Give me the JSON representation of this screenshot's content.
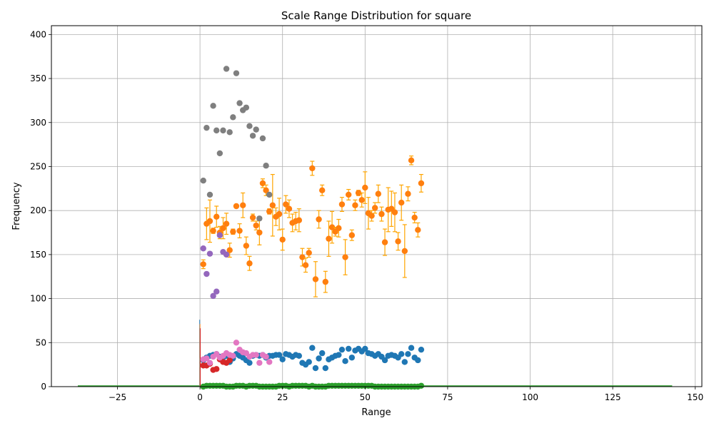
{
  "chart_data": {
    "type": "scatter",
    "title": "Scale Range Distribution for square",
    "xlabel": "Range",
    "ylabel": "Frequency",
    "xlim": [
      -45,
      152
    ],
    "ylim": [
      0,
      410
    ],
    "xticks": [
      -25,
      0,
      25,
      50,
      75,
      100,
      125,
      150
    ],
    "yticks": [
      0,
      50,
      100,
      150,
      200,
      250,
      300,
      350,
      400
    ],
    "grid": true,
    "error_bar_color": "#ffa500",
    "series": [
      {
        "color": "#1f77b4",
        "points": [
          [
            1,
            30
          ],
          [
            2,
            33
          ],
          [
            3,
            35
          ],
          [
            4,
            36
          ],
          [
            5,
            37
          ],
          [
            6,
            34
          ],
          [
            7,
            33
          ],
          [
            8,
            35
          ],
          [
            9,
            28
          ],
          [
            10,
            32
          ],
          [
            11,
            37
          ],
          [
            12,
            35
          ],
          [
            13,
            33
          ],
          [
            14,
            30
          ],
          [
            15,
            27
          ],
          [
            16,
            35
          ],
          [
            17,
            36
          ],
          [
            18,
            35
          ],
          [
            19,
            36
          ],
          [
            20,
            33
          ],
          [
            21,
            35
          ],
          [
            22,
            35
          ],
          [
            23,
            36
          ],
          [
            24,
            36
          ],
          [
            25,
            31
          ],
          [
            26,
            37
          ],
          [
            27,
            36
          ],
          [
            28,
            34
          ],
          [
            29,
            36
          ],
          [
            30,
            35
          ],
          [
            31,
            27
          ],
          [
            32,
            25
          ],
          [
            33,
            28
          ],
          [
            34,
            44
          ],
          [
            35,
            21
          ],
          [
            36,
            32
          ],
          [
            37,
            38
          ],
          [
            38,
            21
          ],
          [
            39,
            31
          ],
          [
            40,
            33
          ],
          [
            41,
            35
          ],
          [
            42,
            36
          ],
          [
            43,
            42
          ],
          [
            44,
            29
          ],
          [
            45,
            43
          ],
          [
            46,
            33
          ],
          [
            47,
            41
          ],
          [
            48,
            43
          ],
          [
            49,
            40
          ],
          [
            50,
            43
          ],
          [
            51,
            38
          ],
          [
            52,
            37
          ],
          [
            53,
            35
          ],
          [
            54,
            37
          ],
          [
            55,
            34
          ],
          [
            56,
            30
          ],
          [
            57,
            35
          ],
          [
            58,
            36
          ],
          [
            59,
            35
          ],
          [
            60,
            33
          ],
          [
            61,
            37
          ],
          [
            62,
            28
          ],
          [
            63,
            37
          ],
          [
            64,
            44
          ],
          [
            65,
            33
          ],
          [
            66,
            30
          ],
          [
            67,
            42
          ]
        ]
      },
      {
        "color": "#ff7f0e",
        "points": [
          [
            1,
            139,
            5
          ],
          [
            2,
            185,
            18
          ],
          [
            3,
            188,
            24
          ],
          [
            4,
            177,
            3
          ],
          [
            5,
            193,
            12
          ],
          [
            6,
            175,
            7
          ],
          [
            7,
            180,
            12
          ],
          [
            8,
            185,
            12
          ],
          [
            9,
            155,
            8
          ],
          [
            10,
            176,
            3
          ],
          [
            11,
            205,
            2
          ],
          [
            12,
            177,
            8
          ],
          [
            13,
            206,
            14
          ],
          [
            14,
            160,
            10
          ],
          [
            15,
            140,
            8
          ],
          [
            16,
            192,
            4
          ],
          [
            17,
            183,
            5
          ],
          [
            18,
            175,
            14
          ],
          [
            19,
            231,
            5
          ],
          [
            20,
            223,
            6
          ],
          [
            21,
            199,
            3
          ],
          [
            22,
            206,
            35
          ],
          [
            23,
            193,
            10
          ],
          [
            24,
            196,
            18
          ],
          [
            25,
            167,
            12
          ],
          [
            26,
            207,
            10
          ],
          [
            27,
            202,
            10
          ],
          [
            28,
            186,
            10
          ],
          [
            29,
            188,
            10
          ],
          [
            30,
            189,
            13
          ],
          [
            31,
            147,
            10
          ],
          [
            32,
            138,
            8
          ],
          [
            33,
            152,
            5
          ],
          [
            34,
            248,
            8
          ],
          [
            35,
            122,
            20
          ],
          [
            36,
            190,
            10
          ],
          [
            37,
            223,
            6
          ],
          [
            38,
            119,
            12
          ],
          [
            39,
            168,
            20
          ],
          [
            40,
            181,
            18
          ],
          [
            41,
            176,
            5
          ],
          [
            42,
            180,
            10
          ],
          [
            43,
            207,
            8
          ],
          [
            44,
            147,
            20
          ],
          [
            45,
            218,
            6
          ],
          [
            46,
            172,
            6
          ],
          [
            47,
            206,
            6
          ],
          [
            48,
            220,
            3
          ],
          [
            49,
            212,
            8
          ],
          [
            50,
            226,
            18
          ],
          [
            51,
            197,
            18
          ],
          [
            52,
            194,
            6
          ],
          [
            53,
            203,
            6
          ],
          [
            54,
            219,
            10
          ],
          [
            55,
            196,
            8
          ],
          [
            56,
            164,
            15
          ],
          [
            57,
            201,
            25
          ],
          [
            58,
            202,
            20
          ],
          [
            59,
            198,
            22
          ],
          [
            60,
            165,
            10
          ],
          [
            61,
            209,
            20
          ],
          [
            62,
            154,
            30
          ],
          [
            63,
            219,
            8
          ],
          [
            64,
            257,
            5
          ],
          [
            65,
            192,
            6
          ],
          [
            66,
            178,
            8
          ],
          [
            67,
            231,
            10
          ]
        ]
      },
      {
        "color": "#2ca02c",
        "points": [
          [
            1,
            0
          ],
          [
            2,
            1
          ],
          [
            3,
            1
          ],
          [
            4,
            1
          ],
          [
            5,
            1
          ],
          [
            6,
            1
          ],
          [
            7,
            1
          ],
          [
            8,
            0
          ],
          [
            9,
            0
          ],
          [
            10,
            0
          ],
          [
            11,
            1
          ],
          [
            12,
            1
          ],
          [
            13,
            1
          ],
          [
            14,
            0
          ],
          [
            15,
            1
          ],
          [
            16,
            1
          ],
          [
            17,
            1
          ],
          [
            18,
            0
          ],
          [
            19,
            0
          ],
          [
            20,
            0
          ],
          [
            21,
            0
          ],
          [
            22,
            0
          ],
          [
            23,
            0
          ],
          [
            24,
            1
          ],
          [
            25,
            1
          ],
          [
            26,
            1
          ],
          [
            27,
            0
          ],
          [
            28,
            1
          ],
          [
            29,
            1
          ],
          [
            30,
            1
          ],
          [
            31,
            1
          ],
          [
            32,
            1
          ],
          [
            33,
            0
          ],
          [
            34,
            1
          ],
          [
            35,
            0
          ],
          [
            36,
            0
          ],
          [
            37,
            0
          ],
          [
            38,
            0
          ],
          [
            39,
            1
          ],
          [
            40,
            1
          ],
          [
            41,
            1
          ],
          [
            42,
            1
          ],
          [
            43,
            1
          ],
          [
            44,
            1
          ],
          [
            45,
            1
          ],
          [
            46,
            1
          ],
          [
            47,
            1
          ],
          [
            48,
            1
          ],
          [
            49,
            1
          ],
          [
            50,
            1
          ],
          [
            51,
            1
          ],
          [
            52,
            1
          ],
          [
            53,
            0
          ],
          [
            54,
            0
          ],
          [
            55,
            0
          ],
          [
            56,
            0
          ],
          [
            57,
            0
          ],
          [
            58,
            0
          ],
          [
            59,
            0
          ],
          [
            60,
            0
          ],
          [
            61,
            0
          ],
          [
            62,
            0
          ],
          [
            63,
            0
          ],
          [
            64,
            0
          ],
          [
            65,
            0
          ],
          [
            66,
            0
          ],
          [
            67,
            1
          ]
        ]
      },
      {
        "color": "#d62728",
        "points": [
          [
            1,
            24
          ],
          [
            2,
            24
          ],
          [
            3,
            26
          ],
          [
            4,
            19
          ],
          [
            5,
            20
          ],
          [
            6,
            31
          ],
          [
            7,
            28
          ],
          [
            8,
            27
          ],
          [
            9,
            30
          ]
        ]
      },
      {
        "color": "#9467bd",
        "points": [
          [
            1,
            157
          ],
          [
            2,
            128
          ],
          [
            3,
            151
          ],
          [
            4,
            103
          ],
          [
            5,
            108
          ],
          [
            6,
            172
          ],
          [
            7,
            153
          ],
          [
            8,
            150
          ]
        ]
      },
      {
        "color": "#7f7f7f",
        "points": [
          [
            1,
            234
          ],
          [
            2,
            294
          ],
          [
            3,
            218
          ],
          [
            4,
            319
          ],
          [
            5,
            291
          ],
          [
            6,
            265
          ],
          [
            7,
            291
          ],
          [
            8,
            361
          ],
          [
            9,
            289
          ],
          [
            10,
            306
          ],
          [
            11,
            356
          ],
          [
            12,
            322
          ],
          [
            13,
            314
          ],
          [
            14,
            317
          ],
          [
            15,
            296
          ],
          [
            16,
            285
          ],
          [
            17,
            292
          ],
          [
            18,
            191
          ],
          [
            19,
            282
          ],
          [
            20,
            251
          ],
          [
            21,
            218
          ]
        ]
      },
      {
        "color": "#e377c2",
        "points": [
          [
            1,
            31
          ],
          [
            2,
            32
          ],
          [
            3,
            27
          ],
          [
            4,
            34
          ],
          [
            5,
            37
          ],
          [
            6,
            33
          ],
          [
            7,
            35
          ],
          [
            8,
            38
          ],
          [
            9,
            36
          ],
          [
            10,
            35
          ],
          [
            11,
            50
          ],
          [
            12,
            42
          ],
          [
            13,
            39
          ],
          [
            14,
            38
          ],
          [
            15,
            34
          ],
          [
            16,
            36
          ],
          [
            17,
            36
          ],
          [
            18,
            27
          ],
          [
            19,
            36
          ],
          [
            20,
            34
          ],
          [
            21,
            28
          ]
        ]
      }
    ],
    "baseline_line": {
      "color": "#2ca02c",
      "x_start": -37,
      "x_end": 143,
      "y": 0
    },
    "vertical_spike": {
      "colors": [
        "#1f77b4",
        "#ff7f0e",
        "#d62728"
      ],
      "x": 0,
      "y_top": 76
    }
  }
}
